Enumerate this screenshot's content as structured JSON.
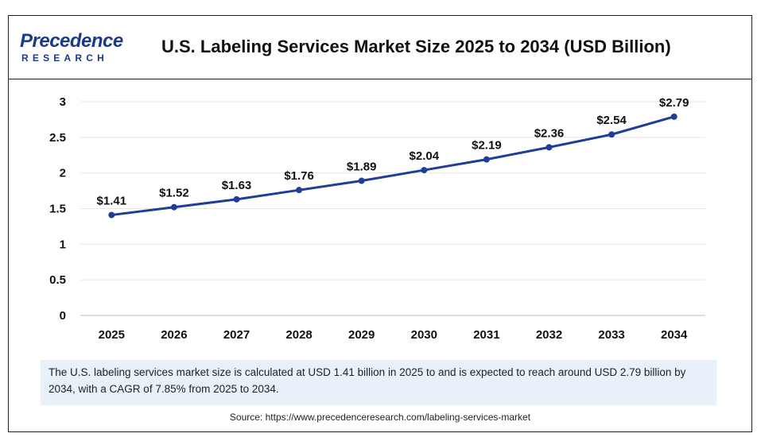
{
  "logo": {
    "top_text": "Precedence",
    "bottom_text": "RESEARCH"
  },
  "colors": {
    "line": "#1f3d99",
    "logo": "#1b3a8a",
    "caption_bg": "#e8f0f9"
  },
  "caption": "The U.S. labeling services market size is calculated at USD 1.41 billion in 2025 to and is expected to reach around USD 2.79 billion by 2034, with a CAGR of 7.85% from 2025 to 2034.",
  "source": "Source: https://www.precedenceresearch.com/labeling-services-market",
  "chart_data": {
    "type": "line",
    "title": "U.S. Labeling Services Market Size 2025 to 2034 (USD Billion)",
    "xlabel": "",
    "ylabel": "",
    "categories": [
      "2025",
      "2026",
      "2027",
      "2028",
      "2029",
      "2030",
      "2031",
      "2032",
      "2033",
      "2034"
    ],
    "series": [
      {
        "values": [
          1.41,
          1.52,
          1.63,
          1.76,
          1.89,
          2.04,
          2.19,
          2.36,
          2.54,
          2.79
        ]
      }
    ],
    "data_labels": [
      "$1.41",
      "$1.52",
      "$1.63",
      "$1.76",
      "$1.89",
      "$2.04",
      "$2.19",
      "$2.36",
      "$2.54",
      "$2.79"
    ],
    "ylim": [
      0,
      3
    ],
    "yticks": [
      0,
      0.5,
      1,
      1.5,
      2,
      2.5,
      3
    ],
    "ytick_labels": [
      "0",
      "0.5",
      "1",
      "1.5",
      "2",
      "2.5",
      "3"
    ],
    "grid": true,
    "legend": "none"
  }
}
